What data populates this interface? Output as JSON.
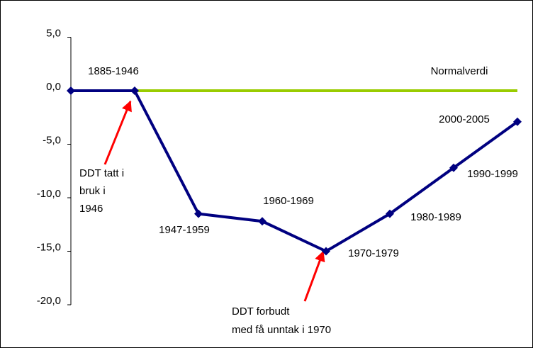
{
  "chart_data": {
    "type": "line",
    "categories": [
      null,
      "1885-1946",
      "1947-1959",
      "1960-1969",
      "1970-1979",
      "1980-1989",
      "1990-1999",
      "2000-2005"
    ],
    "series": [
      {
        "color": "#000080",
        "values": [
          0,
          0,
          -11.5,
          -12.2,
          -15,
          -11.5,
          -7.2,
          -2.9
        ]
      },
      {
        "name": "Normalverdi",
        "color": "#99cc00",
        "values": [
          null,
          0,
          0,
          0,
          0,
          0,
          0,
          0
        ]
      }
    ],
    "ylim": [
      -20,
      5
    ],
    "yticks": [
      {
        "value": -20,
        "label": "-20,0"
      },
      {
        "value": -15,
        "label": "-15,0"
      },
      {
        "value": -10,
        "label": "-10,0"
      },
      {
        "value": -5,
        "label": "-5,0"
      },
      {
        "value": 0,
        "label": "0,0"
      },
      {
        "value": 5,
        "label": "5,0"
      }
    ],
    "annotations": [
      [
        "DDT tatt i",
        "bruk i",
        "1946"
      ],
      [
        "DDT forbudt",
        "med få unntak i 1970"
      ]
    ]
  }
}
